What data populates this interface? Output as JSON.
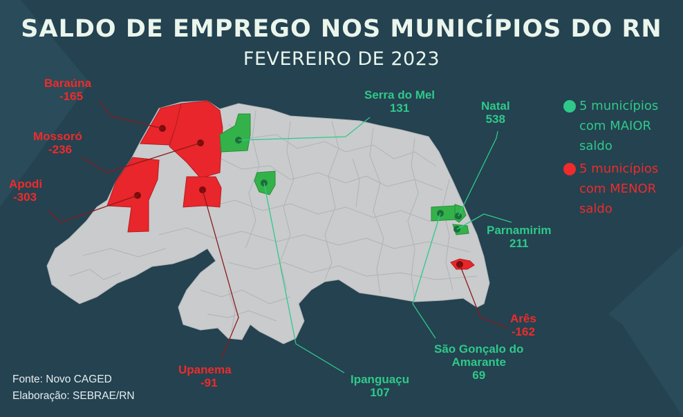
{
  "title": "SALDO DE EMPREGO NOS MUNICÍPIOS DO RN",
  "subtitle": "FEVEREIRO DE 2023",
  "colors": {
    "background": "#244250",
    "state_fill": "#c9cbcd",
    "positive": "#2fc98a",
    "negative": "#ef2b2b",
    "positive_area": "#34b24a",
    "negative_area": "#e8262b"
  },
  "legend": {
    "positive": "5 municípios com MAIOR saldo",
    "positive_lines": [
      "5 municípios",
      "com MAIOR",
      "saldo"
    ],
    "negative": "5 municípios com MENOR saldo",
    "negative_lines": [
      "5 municípios",
      "com MENOR",
      "saldo"
    ]
  },
  "municipalities": {
    "barauna": {
      "name": "Baraúna",
      "value": "-165",
      "group": "negative"
    },
    "mossoro": {
      "name": "Mossoró",
      "value": "-236",
      "group": "negative"
    },
    "apodi": {
      "name": "Apodi",
      "value": "-303",
      "group": "negative"
    },
    "upanema": {
      "name": "Upanema",
      "value": "-91",
      "group": "negative"
    },
    "ares": {
      "name": "Arês",
      "value": "-162",
      "group": "negative"
    },
    "serra_do_mel": {
      "name": "Serra do Mel",
      "value": "131",
      "group": "positive"
    },
    "natal": {
      "name": "Natal",
      "value": "538",
      "group": "positive"
    },
    "parnamirim": {
      "name": "Parnamirim",
      "value": "211",
      "group": "positive"
    },
    "sao_goncalo": {
      "name": "São Gonçalo do Amarante",
      "name_lines": [
        "São Gonçalo do",
        "Amarante"
      ],
      "value": "69",
      "group": "positive"
    },
    "ipanguacu": {
      "name": "Ipanguaçu",
      "value": "107",
      "group": "positive"
    }
  },
  "source": {
    "line1": "Fonte: Novo CAGED",
    "line2": "Elaboração: SEBRAE/RN"
  }
}
